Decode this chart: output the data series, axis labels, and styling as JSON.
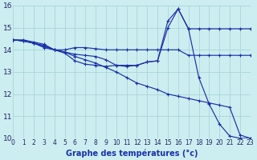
{
  "title": "Graphe des températures (°c)",
  "bg_color": "#cceef0",
  "grid_color": "#aad4d8",
  "line_color": "#1a2faa",
  "x_labels": [
    "0",
    "1",
    "2",
    "3",
    "4",
    "5",
    "6",
    "7",
    "8",
    "9",
    "10",
    "11",
    "12",
    "13",
    "14",
    "15",
    "16",
    "17",
    "18",
    "19",
    "20",
    "21",
    "22",
    "23"
  ],
  "xlim": [
    0,
    23
  ],
  "ylim": [
    10,
    16
  ],
  "yticks": [
    10,
    11,
    12,
    13,
    14,
    15,
    16
  ],
  "series": [
    [
      14.45,
      14.45,
      14.35,
      14.25,
      14.0,
      14.0,
      14.1,
      14.1,
      14.05,
      14.0,
      14.0,
      14.0,
      14.0,
      14.0,
      14.0,
      14.0,
      14.0,
      13.75,
      13.75,
      13.75,
      13.75,
      13.75,
      13.75,
      13.75
    ],
    [
      14.45,
      14.4,
      14.3,
      14.2,
      14.0,
      13.9,
      13.8,
      13.75,
      13.7,
      13.55,
      13.3,
      13.3,
      13.3,
      13.45,
      13.5,
      15.3,
      15.85,
      14.95,
      14.95,
      14.95,
      14.95,
      14.95,
      14.95,
      14.95
    ],
    [
      14.45,
      14.4,
      14.3,
      14.15,
      14.0,
      13.85,
      13.5,
      13.35,
      13.3,
      13.25,
      13.3,
      13.25,
      13.3,
      13.45,
      13.5,
      15.0,
      15.85,
      14.95,
      12.75,
      11.55,
      10.65,
      10.1,
      10.0,
      10.0
    ],
    [
      14.45,
      14.4,
      14.3,
      14.1,
      14.0,
      13.9,
      13.7,
      13.55,
      13.4,
      13.2,
      13.0,
      12.75,
      12.5,
      12.35,
      12.2,
      12.0,
      11.9,
      11.8,
      11.7,
      11.6,
      11.5,
      11.4,
      10.15,
      10.0
    ]
  ]
}
